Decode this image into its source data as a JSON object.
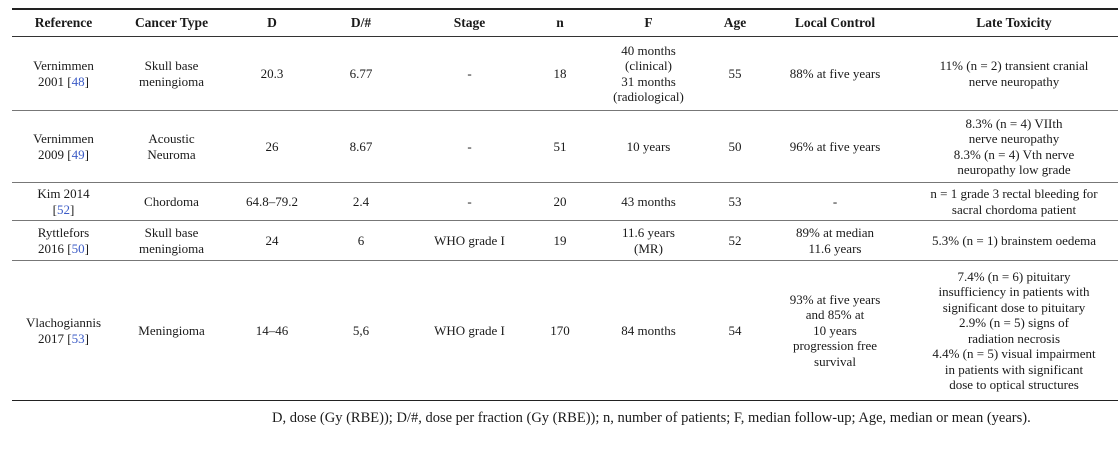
{
  "table": {
    "columns": [
      "Reference",
      "Cancer Type",
      "D",
      "D/#",
      "Stage",
      "n",
      "F",
      "Age",
      "Local Control",
      "Late Toxicity"
    ],
    "rows": [
      {
        "ref_name": "Vernimmen",
        "ref_year": "2001",
        "ref_num": "48",
        "cancer_type": [
          "Skull base",
          "meningioma"
        ],
        "d": "20.3",
        "d_per": "6.77",
        "stage": "-",
        "n": "18",
        "f": [
          "40 months",
          "(clinical)",
          "31 months",
          "(radiological)"
        ],
        "age": "55",
        "local_control": [
          "88% at five years"
        ],
        "late_toxicity": [
          "11% (n = 2) transient cranial",
          "nerve neuropathy"
        ]
      },
      {
        "ref_name": "Vernimmen",
        "ref_year": "2009",
        "ref_num": "49",
        "cancer_type": [
          "Acoustic",
          "Neuroma"
        ],
        "d": "26",
        "d_per": "8.67",
        "stage": "-",
        "n": "51",
        "f": [
          "10 years"
        ],
        "age": "50",
        "local_control": [
          "96% at five years"
        ],
        "late_toxicity": [
          "8.3% (n = 4) VIIth",
          "nerve neuropathy",
          "8.3% (n = 4) Vth nerve",
          "neuropathy low grade"
        ]
      },
      {
        "ref_name": "Kim 2014",
        "ref_year": "",
        "ref_num": "52",
        "cancer_type": [
          "Chordoma"
        ],
        "d": "64.8–79.2",
        "d_per": "2.4",
        "stage": "-",
        "n": "20",
        "f": [
          "43 months"
        ],
        "age": "53",
        "local_control": [
          "-"
        ],
        "late_toxicity": [
          "n = 1 grade 3 rectal bleeding for",
          "sacral chordoma patient"
        ]
      },
      {
        "ref_name": "Ryttlefors",
        "ref_year": "2016",
        "ref_num": "50",
        "cancer_type": [
          "Skull base",
          "meningioma"
        ],
        "d": "24",
        "d_per": "6",
        "stage": "WHO grade I",
        "n": "19",
        "f": [
          "11.6 years",
          "(MR)"
        ],
        "age": "52",
        "local_control": [
          "89% at median",
          "11.6 years"
        ],
        "late_toxicity": [
          "5.3% (n = 1) brainstem oedema"
        ]
      },
      {
        "ref_name": "Vlachogiannis",
        "ref_year": "2017",
        "ref_num": "53",
        "cancer_type": [
          "Meningioma"
        ],
        "d": "14–46",
        "d_per": "5,6",
        "stage": "WHO grade I",
        "n": "170",
        "f": [
          "84 months"
        ],
        "age": "54",
        "local_control": [
          "93% at five years",
          "and 85% at",
          "10 years",
          "progression free",
          "survival"
        ],
        "late_toxicity": [
          "7.4% (n = 6) pituitary",
          "insufficiency in patients with",
          "significant dose to pituitary",
          "2.9% (n = 5) signs of",
          "radiation necrosis",
          "4.4% (n = 5) visual impairment",
          "in patients with significant",
          "dose to optical structures"
        ]
      }
    ]
  },
  "footnote": "D, dose (Gy (RBE)); D/#, dose per fraction (Gy (RBE)); n, number of patients; F, median follow-up; Age, median or mean (years)."
}
